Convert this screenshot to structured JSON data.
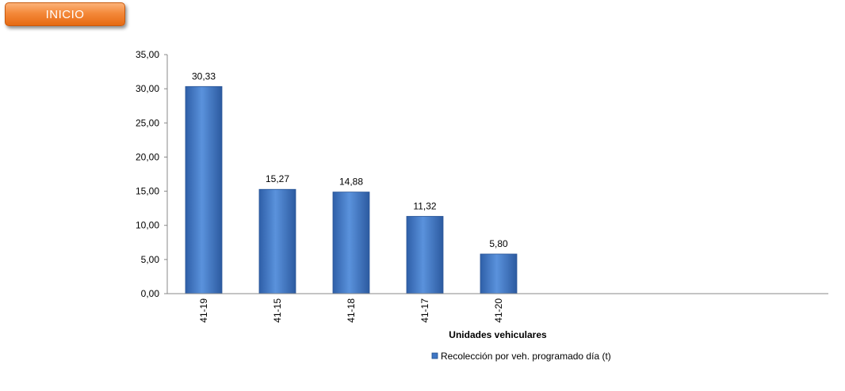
{
  "nav": {
    "home_label": "INICIO"
  },
  "chart_data": {
    "type": "bar",
    "categories": [
      "41-19",
      "41-15",
      "41-18",
      "41-17",
      "41-20"
    ],
    "series": [
      {
        "name": "Recolección por veh. programado día (t)",
        "values": [
          30.33,
          15.27,
          14.88,
          11.32,
          5.8
        ]
      }
    ],
    "data_labels": [
      "30,33",
      "15,27",
      "14,88",
      "11,32",
      "5,80"
    ],
    "y_ticks": [
      "0,00",
      "5,00",
      "10,00",
      "15,00",
      "20,00",
      "25,00",
      "30,00",
      "35,00"
    ],
    "ylim": [
      0,
      35
    ],
    "xlabel": "Unidades vehiculares",
    "ylabel": "",
    "legend_position": "bottom",
    "bar_color": "#3f76c4",
    "grid": false
  }
}
